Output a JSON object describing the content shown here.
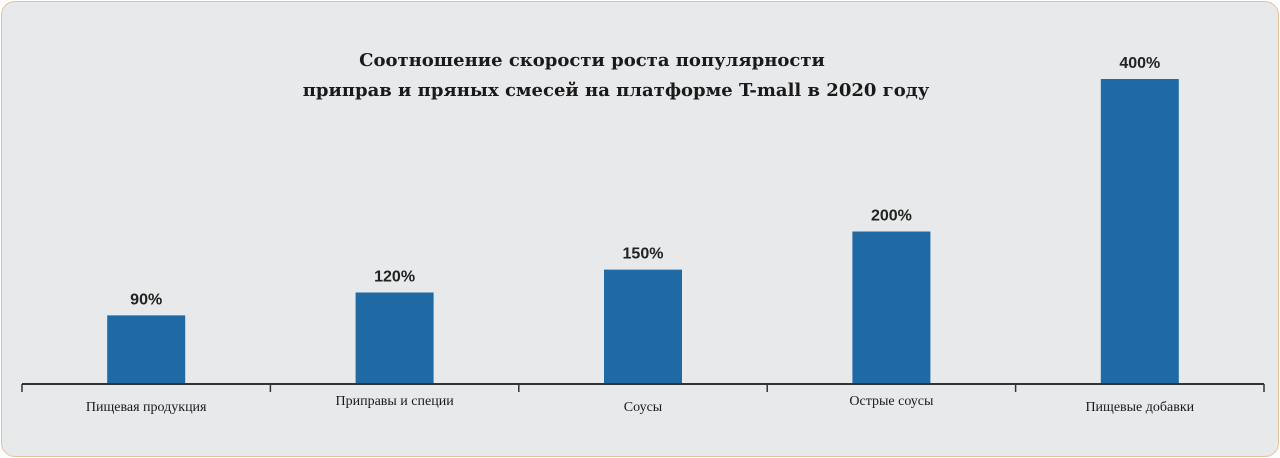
{
  "chart_data": {
    "type": "bar",
    "title_lines": [
      "Соотношение скорости роста популярности",
      "приправ и пряных смесей на платформе T-mall в 2020 году"
    ],
    "categories": [
      "Пищевая продукция",
      "Приправы и специи",
      "Соусы",
      "Острые соусы",
      "Пищевые добавки"
    ],
    "values": [
      90,
      120,
      150,
      200,
      400
    ],
    "value_labels": [
      "90%",
      "120%",
      "150%",
      "200%",
      "400%"
    ],
    "xlabel": "",
    "ylabel": "",
    "ylim": [
      0,
      400
    ],
    "grid": false,
    "bar_color": "#1f6aa5",
    "axis_color": "#333333",
    "background_color": "#e8e9ea"
  }
}
